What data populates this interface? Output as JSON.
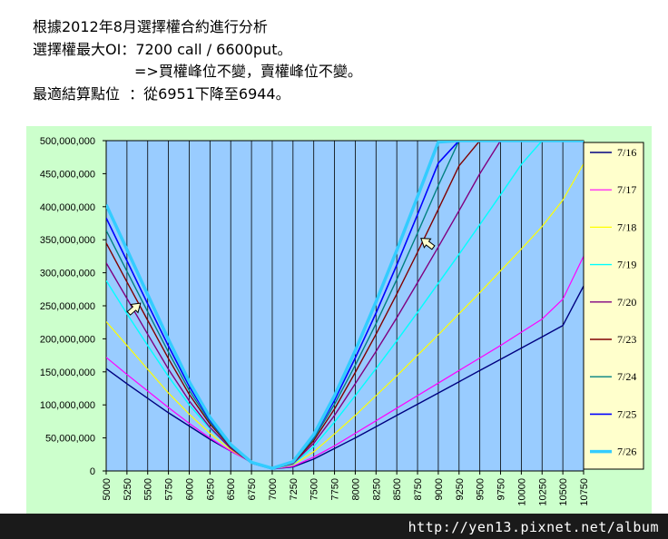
{
  "header": {
    "line1": "根據2012年8月選擇權合約進行分析",
    "line2": "選擇權最大OI：7200 call / 6600put。",
    "line3": "=>買權峰位不變，賣權峰位不變。",
    "line4": "最適結算點位  ：從6951下降至6944。"
  },
  "footer": {
    "text": "http://yen13.pixnet.net/album"
  },
  "colors": {
    "plot_background": "#99ccff",
    "chart_background": "#ccffcc",
    "legend_background": "#ffffcc"
  },
  "chart_data": {
    "type": "line",
    "title": "",
    "xlabel": "",
    "ylabel": "",
    "xlim": [
      5000,
      10750
    ],
    "ylim": [
      0,
      500000000
    ],
    "grid": "vertical",
    "legend_position": "right",
    "x": [
      5000,
      5250,
      5500,
      5750,
      6000,
      6250,
      6500,
      6750,
      7000,
      7250,
      7500,
      7750,
      8000,
      8250,
      8500,
      8750,
      9000,
      9250,
      9500,
      9750,
      10000,
      10250,
      10500,
      10750
    ],
    "x_tick_labels": [
      "5000",
      "5250",
      "5500",
      "5750",
      "6000",
      "6250",
      "6500",
      "6750",
      "7000",
      "7250",
      "7500",
      "7750",
      "8000",
      "8250",
      "8500",
      "8750",
      "9000",
      "9250",
      "9500",
      "9750",
      "10000",
      "10250",
      "10500",
      "10750"
    ],
    "y_tick_labels": [
      "0",
      "50,000,000",
      "100,000,000",
      "150,000,000",
      "200,000,000",
      "250,000,000",
      "300,000,000",
      "350,000,000",
      "400,000,000",
      "450,000,000",
      "500,000,000"
    ],
    "y_ticks": [
      0,
      50000000,
      100000000,
      150000000,
      200000000,
      250000000,
      300000000,
      350000000,
      400000000,
      450000000,
      500000000
    ],
    "series": [
      {
        "name": "7/16",
        "color": "#000080",
        "width": 1.4,
        "values": [
          155000000,
          132000000,
          110000000,
          88000000,
          68000000,
          48000000,
          30000000,
          14000000,
          3000000,
          6000000,
          18000000,
          34000000,
          50000000,
          67000000,
          84000000,
          101000000,
          118000000,
          135000000,
          152000000,
          169000000,
          186000000,
          203000000,
          220000000,
          280000000
        ]
      },
      {
        "name": "7/17",
        "color": "#ff00ff",
        "width": 1.2,
        "values": [
          172000000,
          146000000,
          121000000,
          96000000,
          72000000,
          50000000,
          30000000,
          13000000,
          3000000,
          7000000,
          21000000,
          38000000,
          57000000,
          76000000,
          95000000,
          114000000,
          133000000,
          152000000,
          171000000,
          190000000,
          210000000,
          230000000,
          260000000,
          325000000
        ]
      },
      {
        "name": "7/18",
        "color": "#ffff00",
        "width": 1.2,
        "values": [
          226000000,
          190000000,
          154000000,
          118000000,
          86000000,
          57000000,
          32000000,
          13000000,
          3000000,
          9000000,
          29000000,
          56000000,
          84000000,
          114000000,
          144000000,
          175000000,
          206000000,
          238000000,
          270000000,
          303000000,
          336000000,
          370000000,
          410000000,
          465000000
        ]
      },
      {
        "name": "7/19",
        "color": "#00ffff",
        "width": 1.4,
        "values": [
          288000000,
          238000000,
          190000000,
          143000000,
          100000000,
          64000000,
          34000000,
          13000000,
          3000000,
          10000000,
          37000000,
          74000000,
          114000000,
          155000000,
          197000000,
          240000000,
          284000000,
          328000000,
          373000000,
          418000000,
          464000000,
          500000000,
          500000000,
          500000000
        ]
      },
      {
        "name": "7/20",
        "color": "#800080",
        "width": 1.4,
        "values": [
          315000000,
          261000000,
          207000000,
          154000000,
          106000000,
          66000000,
          34000000,
          12000000,
          3000000,
          11000000,
          42000000,
          84000000,
          132000000,
          181000000,
          232000000,
          285000000,
          339000000,
          394000000,
          450000000,
          500000000,
          500000000,
          500000000,
          500000000,
          500000000
        ]
      },
      {
        "name": "7/23",
        "color": "#800000",
        "width": 1.4,
        "values": [
          345000000,
          286000000,
          228000000,
          170000000,
          116000000,
          71000000,
          36000000,
          12000000,
          3000000,
          12000000,
          46000000,
          94000000,
          149000000,
          207000000,
          268000000,
          331000000,
          396000000,
          462000000,
          500000000,
          500000000,
          500000000,
          500000000,
          500000000,
          500000000
        ]
      },
      {
        "name": "7/24",
        "color": "#008080",
        "width": 1.4,
        "values": [
          364000000,
          302000000,
          241000000,
          180000000,
          122000000,
          74000000,
          37000000,
          12000000,
          3000000,
          13000000,
          49000000,
          101000000,
          160000000,
          223000000,
          290000000,
          360000000,
          432000000,
          500000000,
          500000000,
          500000000,
          500000000,
          500000000,
          500000000,
          500000000
        ]
      },
      {
        "name": "7/25",
        "color": "#0000ff",
        "width": 1.6,
        "values": [
          383000000,
          318000000,
          253000000,
          189000000,
          128000000,
          77000000,
          38000000,
          12000000,
          3000000,
          13000000,
          52000000,
          107000000,
          171000000,
          239000000,
          312000000,
          388000000,
          466000000,
          500000000,
          500000000,
          500000000,
          500000000,
          500000000,
          500000000,
          500000000
        ]
      },
      {
        "name": "7/26",
        "color": "#33ccff",
        "width": 3.5,
        "values": [
          403000000,
          335000000,
          267000000,
          199000000,
          135000000,
          81000000,
          40000000,
          13000000,
          4000000,
          14000000,
          55000000,
          114000000,
          182000000,
          256000000,
          334000000,
          415000000,
          498000000,
          500000000,
          500000000,
          500000000,
          500000000,
          500000000,
          500000000,
          500000000
        ]
      }
    ]
  }
}
